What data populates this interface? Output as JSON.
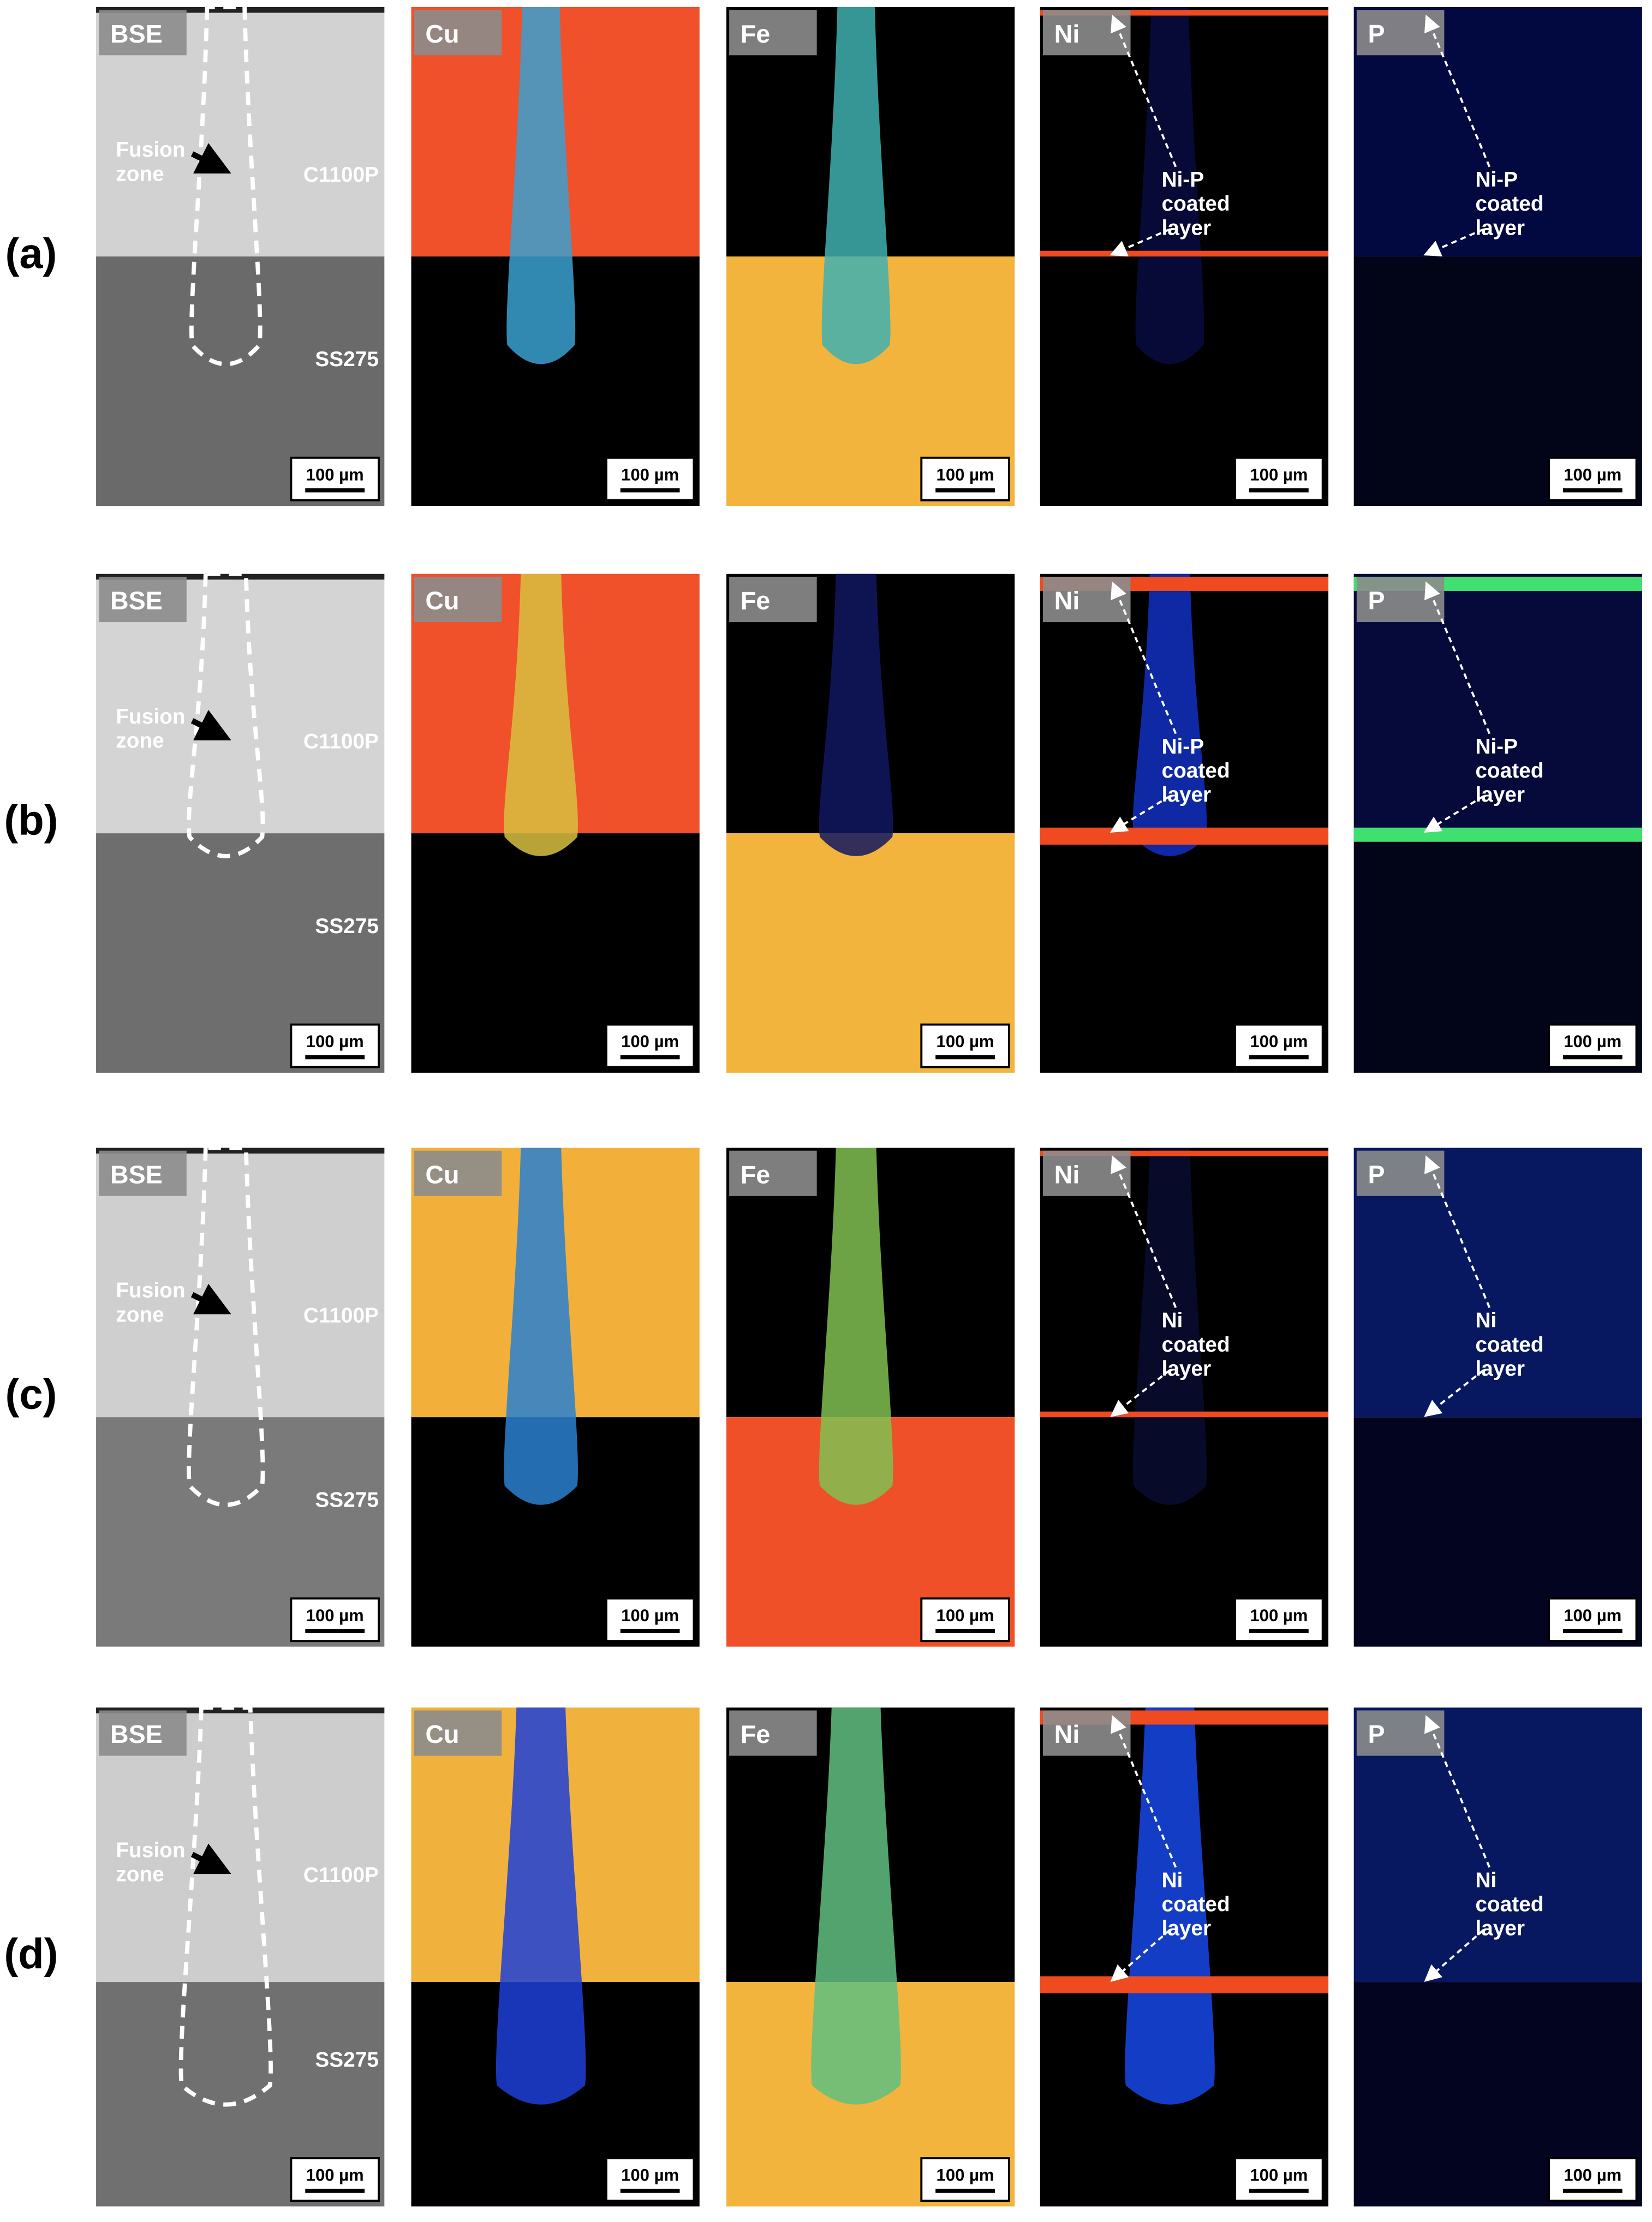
{
  "figure": {
    "rows": [
      {
        "label": "(a)",
        "panels": [
          {
            "label": "BSE",
            "annotations": [
              {
                "text": [
                  "Fusion",
                  "zone"
                ]
              },
              {
                "text": [
                  "C1100P"
                ]
              },
              {
                "text": [
                  "SS275"
                ]
              }
            ],
            "scale_bar": "100 µm"
          },
          {
            "label": "Cu",
            "scale_bar": "100 µm"
          },
          {
            "label": "Fe",
            "scale_bar": "100 µm"
          },
          {
            "label": "Ni",
            "annotations": [
              {
                "text": [
                  "Ni-P",
                  "coated",
                  "layer"
                ]
              }
            ],
            "scale_bar": "100 µm"
          },
          {
            "label": "P",
            "annotations": [
              {
                "text": [
                  "Ni-P",
                  "coated",
                  "layer"
                ]
              }
            ],
            "scale_bar": "100 µm"
          }
        ]
      },
      {
        "label": "(b)",
        "panels": [
          {
            "label": "BSE",
            "annotations": [
              {
                "text": [
                  "Fusion",
                  "zone"
                ]
              },
              {
                "text": [
                  "C1100P"
                ]
              },
              {
                "text": [
                  "SS275"
                ]
              }
            ],
            "scale_bar": "100 µm"
          },
          {
            "label": "Cu",
            "scale_bar": "100 µm"
          },
          {
            "label": "Fe",
            "scale_bar": "100 µm"
          },
          {
            "label": "Ni",
            "annotations": [
              {
                "text": [
                  "Ni-P",
                  "coated",
                  "layer"
                ]
              }
            ],
            "scale_bar": "100 µm"
          },
          {
            "label": "P",
            "annotations": [
              {
                "text": [
                  "Ni-P",
                  "coated",
                  "layer"
                ]
              }
            ],
            "scale_bar": "100 µm"
          }
        ]
      },
      {
        "label": "(c)",
        "panels": [
          {
            "label": "BSE",
            "annotations": [
              {
                "text": [
                  "Fusion",
                  "zone"
                ]
              },
              {
                "text": [
                  "C1100P"
                ]
              },
              {
                "text": [
                  "SS275"
                ]
              }
            ],
            "scale_bar": "100 µm"
          },
          {
            "label": "Cu",
            "scale_bar": "100 µm"
          },
          {
            "label": "Fe",
            "scale_bar": "100 µm"
          },
          {
            "label": "Ni",
            "annotations": [
              {
                "text": [
                  "Ni",
                  "coated",
                  "layer"
                ]
              }
            ],
            "scale_bar": "100 µm"
          },
          {
            "label": "P",
            "annotations": [
              {
                "text": [
                  "Ni",
                  "coated",
                  "layer"
                ]
              }
            ],
            "scale_bar": "100 µm"
          }
        ]
      },
      {
        "label": "(d)",
        "panels": [
          {
            "label": "BSE",
            "annotations": [
              {
                "text": [
                  "Fusion",
                  "zone"
                ]
              },
              {
                "text": [
                  "C1100P"
                ]
              },
              {
                "text": [
                  "SS275"
                ]
              }
            ],
            "scale_bar": "100 µm"
          },
          {
            "label": "Cu",
            "scale_bar": "100 µm"
          },
          {
            "label": "Fe",
            "scale_bar": "100 µm"
          },
          {
            "label": "Ni",
            "annotations": [
              {
                "text": [
                  "Ni",
                  "coated",
                  "layer"
                ]
              }
            ],
            "scale_bar": "100 µm"
          },
          {
            "label": "P",
            "annotations": [
              {
                "text": [
                  "Ni",
                  "coated",
                  "layer"
                ]
              }
            ],
            "scale_bar": "100 µm"
          }
        ]
      }
    ]
  }
}
